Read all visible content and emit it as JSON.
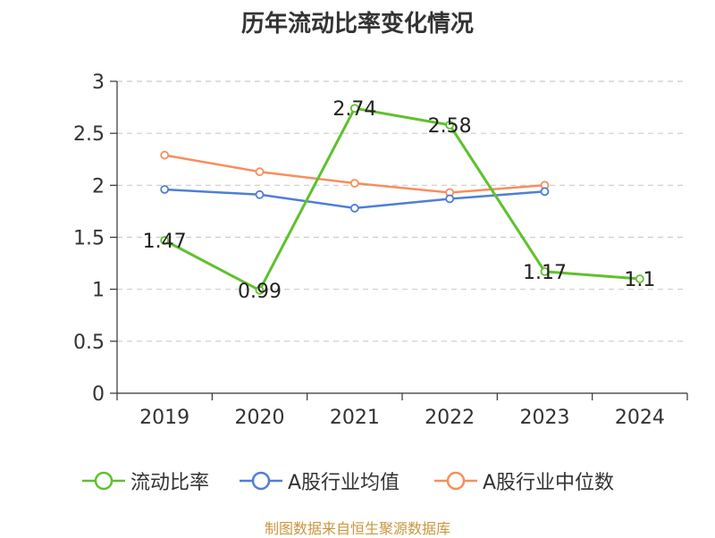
{
  "title": "历年流动比率变化情况",
  "source": "制图数据来自恒生聚源数据库",
  "colors": {
    "series_0": "#5fc12c",
    "series_1": "#4f7ed8",
    "series_2": "#f88e5c",
    "source": "#c8963e"
  },
  "chart_data": {
    "type": "line",
    "title": "历年流动比率变化情况",
    "categories": [
      "2019",
      "2020",
      "2021",
      "2022",
      "2023",
      "2024"
    ],
    "ylim": [
      0,
      3
    ],
    "yticks": [
      "0",
      "0.5",
      "1",
      "1.5",
      "2",
      "2.5",
      "3"
    ],
    "grid": true,
    "legend_position": "bottom",
    "series": [
      {
        "name": "流动比率",
        "values": [
          1.47,
          0.99,
          2.74,
          2.58,
          1.17,
          1.1
        ],
        "labels": [
          "1.47",
          "0.99",
          "2.74",
          "2.58",
          "1.17",
          "1.1"
        ]
      },
      {
        "name": "A股行业均值",
        "values": [
          1.96,
          1.91,
          1.78,
          1.87,
          1.94,
          null
        ]
      },
      {
        "name": "A股行业中位数",
        "values": [
          2.29,
          2.13,
          2.02,
          1.93,
          2.0,
          null
        ]
      }
    ]
  }
}
